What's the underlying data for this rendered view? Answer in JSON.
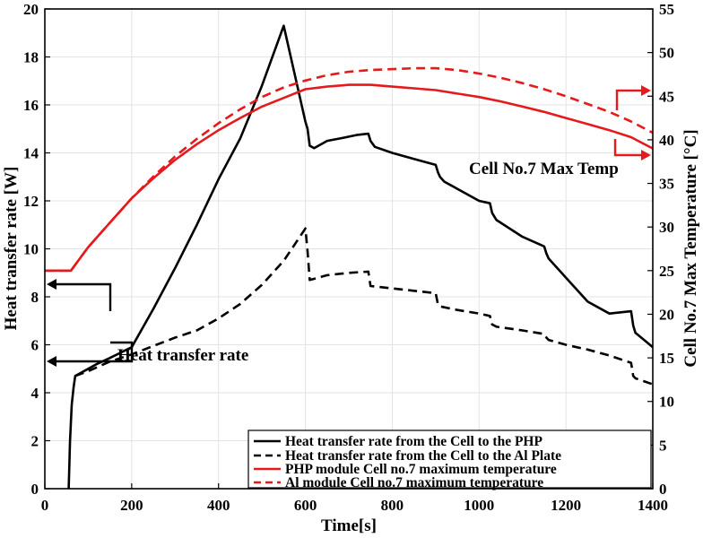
{
  "chart_data": {
    "type": "line",
    "title": "",
    "xlabel": "Time[s]",
    "ylabel_left": "Heat transfer rate [W]",
    "ylabel_right": "Cell No.7 Max Temperature  [°C]",
    "xlim": [
      0,
      1400
    ],
    "ylim_left": [
      0,
      20
    ],
    "ylim_right": [
      0,
      55
    ],
    "x_ticks": [
      "0",
      "200",
      "400",
      "600",
      "800",
      "1000",
      "1200",
      "1400"
    ],
    "y_left_ticks": [
      "0",
      "2",
      "4",
      "6",
      "8",
      "10",
      "12",
      "14",
      "16",
      "18",
      "20"
    ],
    "y_right_ticks": [
      "0",
      "5",
      "10",
      "15",
      "20",
      "25",
      "30",
      "35",
      "40",
      "45",
      "50",
      "55"
    ],
    "grid": true,
    "legend_position": "bottom-right",
    "annotations": {
      "left_axis": "Heat transfer rate",
      "right_axis": "Cell No.7 Max Temp"
    },
    "colors": {
      "black": "#000000",
      "red": "#e41a1c"
    },
    "series": [
      {
        "name": "Heat transfer rate from the Cell to the PHP",
        "axis": "left",
        "color": "#000000",
        "dash": "solid",
        "x": [
          55,
          58,
          62,
          66,
          70,
          80,
          100,
          120,
          150,
          200,
          250,
          300,
          350,
          400,
          450,
          500,
          550,
          600,
          605,
          610,
          620,
          650,
          680,
          720,
          745,
          750,
          760,
          800,
          850,
          900,
          905,
          910,
          920,
          1000,
          1025,
          1030,
          1040,
          1100,
          1150,
          1155,
          1160,
          1200,
          1250,
          1300,
          1350,
          1355,
          1360,
          1380,
          1400
        ],
        "y": [
          0,
          2.0,
          3.5,
          4.2,
          4.7,
          4.8,
          5.0,
          5.2,
          5.45,
          5.9,
          7.5,
          9.2,
          11.0,
          12.9,
          14.6,
          16.8,
          19.3,
          15.3,
          15.0,
          14.3,
          14.2,
          14.5,
          14.6,
          14.75,
          14.8,
          14.5,
          14.25,
          14.0,
          13.75,
          13.5,
          13.2,
          13.0,
          12.8,
          12.0,
          11.9,
          11.5,
          11.2,
          10.5,
          10.1,
          9.8,
          9.6,
          8.8,
          7.8,
          7.3,
          7.4,
          6.8,
          6.5,
          6.2,
          5.9
        ]
      },
      {
        "name": "Heat transfer rate from the Cell to the Al Plate",
        "axis": "left",
        "color": "#000000",
        "dash": "dashed",
        "x": [
          70,
          100,
          150,
          200,
          250,
          300,
          350,
          400,
          450,
          500,
          550,
          600,
          605,
          610,
          650,
          700,
          745,
          750,
          800,
          850,
          900,
          905,
          910,
          950,
          1000,
          1025,
          1030,
          1040,
          1100,
          1150,
          1155,
          1160,
          1200,
          1250,
          1300,
          1350,
          1355,
          1360,
          1400
        ],
        "y": [
          4.7,
          4.9,
          5.3,
          5.6,
          5.95,
          6.3,
          6.6,
          7.1,
          7.7,
          8.5,
          9.5,
          10.85,
          9.9,
          8.7,
          8.9,
          9.0,
          9.05,
          8.45,
          8.35,
          8.25,
          8.15,
          7.7,
          7.6,
          7.45,
          7.3,
          7.2,
          6.85,
          6.75,
          6.6,
          6.45,
          6.3,
          6.2,
          6.0,
          5.8,
          5.55,
          5.25,
          4.7,
          4.6,
          4.35
        ]
      },
      {
        "name": "PHP module Cell no.7 maximum temperature",
        "axis": "right",
        "color": "#e41a1c",
        "dash": "solid",
        "x": [
          0,
          60,
          100,
          150,
          200,
          250,
          300,
          350,
          400,
          450,
          500,
          550,
          600,
          650,
          700,
          750,
          800,
          850,
          900,
          950,
          1000,
          1050,
          1100,
          1150,
          1200,
          1250,
          1300,
          1350,
          1400
        ],
        "y": [
          25.0,
          25.0,
          27.7,
          30.5,
          33.3,
          35.6,
          37.7,
          39.5,
          41.1,
          42.5,
          43.8,
          44.8,
          45.8,
          46.1,
          46.3,
          46.3,
          46.1,
          45.9,
          45.7,
          45.3,
          44.9,
          44.4,
          43.8,
          43.2,
          42.5,
          41.8,
          41.1,
          40.3,
          39.0
        ]
      },
      {
        "name": "Al module Cell no.7 maximum temperature",
        "axis": "right",
        "color": "#e41a1c",
        "dash": "dashed",
        "x": [
          0,
          60,
          100,
          150,
          200,
          250,
          300,
          350,
          400,
          450,
          500,
          550,
          600,
          650,
          700,
          750,
          800,
          850,
          900,
          950,
          1000,
          1050,
          1100,
          1150,
          1200,
          1250,
          1300,
          1350,
          1400
        ],
        "y": [
          25.0,
          25.0,
          27.7,
          30.5,
          33.3,
          35.8,
          38.1,
          40.1,
          41.9,
          43.5,
          44.9,
          46.0,
          46.8,
          47.4,
          47.8,
          48.0,
          48.1,
          48.2,
          48.2,
          48.0,
          47.6,
          47.1,
          46.5,
          45.8,
          45.0,
          44.1,
          43.2,
          42.1,
          40.8
        ]
      }
    ]
  }
}
